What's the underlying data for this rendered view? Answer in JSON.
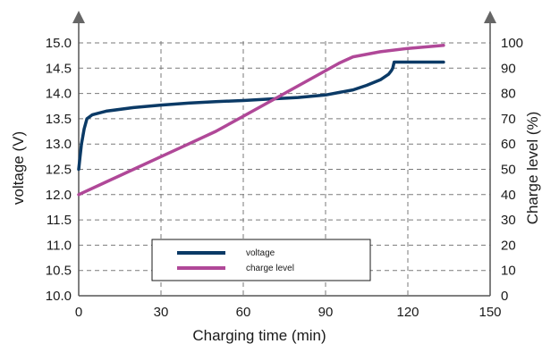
{
  "chart_data": {
    "type": "line",
    "xlabel": "Charging time (min)",
    "ylabel_left": "voltage (V)",
    "ylabel_right": "Charge level (%)",
    "x_ticks": [
      "0",
      "30",
      "60",
      "90",
      "120",
      "150"
    ],
    "left_ticks": [
      "10.0",
      "10.5",
      "11.0",
      "11.5",
      "12.0",
      "12.5",
      "13.0",
      "13.5",
      "14.0",
      "14.5",
      "15.0"
    ],
    "right_ticks": [
      "0",
      "10",
      "20",
      "30",
      "40",
      "50",
      "60",
      "70",
      "80",
      "90",
      "100"
    ],
    "xlim": [
      0,
      150
    ],
    "ylim_left": [
      10.0,
      15.0
    ],
    "ylim_right": [
      0,
      100
    ],
    "grid": "dashed",
    "legend_position": "bottom-center",
    "series": [
      {
        "name": "voltage",
        "axis": "left",
        "color": "#0b3a66",
        "points": [
          [
            0,
            12.5
          ],
          [
            0.5,
            12.75
          ],
          [
            1,
            13.0
          ],
          [
            2,
            13.3
          ],
          [
            3,
            13.5
          ],
          [
            5,
            13.58
          ],
          [
            10,
            13.65
          ],
          [
            20,
            13.72
          ],
          [
            30,
            13.77
          ],
          [
            40,
            13.81
          ],
          [
            50,
            13.84
          ],
          [
            60,
            13.86
          ],
          [
            70,
            13.89
          ],
          [
            80,
            13.92
          ],
          [
            90,
            13.97
          ],
          [
            100,
            14.07
          ],
          [
            105,
            14.16
          ],
          [
            110,
            14.27
          ],
          [
            113,
            14.38
          ],
          [
            114,
            14.45
          ],
          [
            114.5,
            14.5
          ],
          [
            115,
            14.62
          ],
          [
            120,
            14.62
          ],
          [
            133,
            14.62
          ]
        ]
      },
      {
        "name": "charge level",
        "axis": "right",
        "color": "#b04898",
        "points": [
          [
            0,
            40
          ],
          [
            10,
            45
          ],
          [
            20,
            50
          ],
          [
            30,
            55
          ],
          [
            40,
            60
          ],
          [
            50,
            65
          ],
          [
            60,
            71
          ],
          [
            70,
            77
          ],
          [
            80,
            83
          ],
          [
            90,
            89
          ],
          [
            95,
            92
          ],
          [
            100,
            94.5
          ],
          [
            110,
            96.5
          ],
          [
            120,
            97.8
          ],
          [
            133,
            99
          ]
        ]
      }
    ]
  }
}
